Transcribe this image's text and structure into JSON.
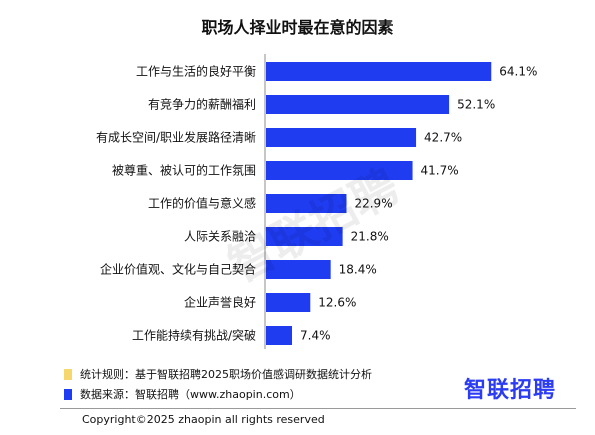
{
  "title": "职场人择业时最在意的因素",
  "chart_data": {
    "type": "bar",
    "orientation": "horizontal",
    "categories": [
      "工作与生活的良好平衡",
      "有竞争力的薪酬福利",
      "有成长空间/职业发展路径清晰",
      "被尊重、被认可的工作氛围",
      "工作的价值与意义感",
      "人际关系融洽",
      "企业价值观、文化与自己契合",
      "企业声誉良好",
      "工作能持续有挑战/突破"
    ],
    "values": [
      64.1,
      52.1,
      42.7,
      41.7,
      22.9,
      21.8,
      18.4,
      12.6,
      7.4
    ],
    "data_labels": [
      "64.1%",
      "52.1%",
      "42.7%",
      "41.7%",
      "22.9%",
      "21.8%",
      "18.4%",
      "12.6%",
      "7.4%"
    ],
    "xlim": [
      0,
      70
    ],
    "bar_color": "#1f3cf0",
    "grid": false
  },
  "notes": [
    {
      "text": "统计规则：基于智联招聘2025职场价值感调研数据统计分析",
      "color": "#f5d76e"
    },
    {
      "text": "数据来源：智联招聘（www.zhaopin.com）",
      "color": "#1f3cf0"
    }
  ],
  "logo": "智联招聘",
  "watermark": "智联招聘",
  "copyright": "Copyright©2025 zhaopin all rights reserved"
}
